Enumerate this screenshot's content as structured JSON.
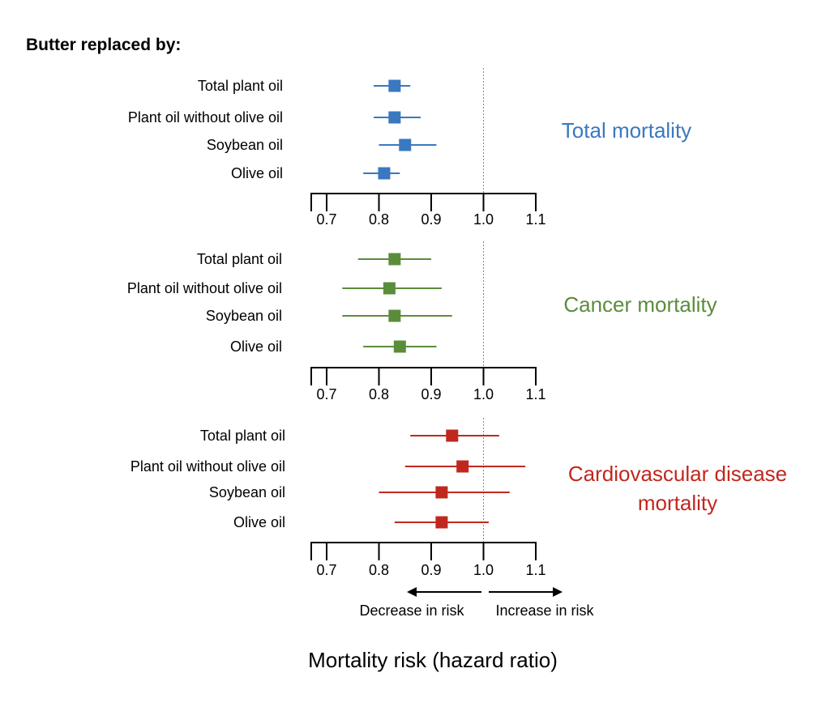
{
  "title": "Butter replaced by:",
  "xlabel": "Mortality risk (hazard ratio)",
  "direction_labels": {
    "decrease": "Decrease in risk",
    "increase": "Increase in risk"
  },
  "colors": {
    "total": "#3a78c0",
    "cancer": "#5b8c3c",
    "cvd": "#c0281f",
    "axis": "#000000",
    "refline": "#888888"
  },
  "chart_data": [
    {
      "type": "forest",
      "title": "Total mortality",
      "color": "#3a78c0",
      "x_ticks": [
        0.7,
        0.8,
        0.9,
        1.0,
        1.1
      ],
      "x_tick_labels": [
        "0.7",
        "0.8",
        "0.9",
        "1.0",
        "1.1"
      ],
      "xlim": [
        0.67,
        1.1
      ],
      "reference_line": 1.0,
      "rows": [
        {
          "label": "Total plant oil",
          "hr": 0.83,
          "lo": 0.79,
          "hi": 0.86
        },
        {
          "label": "Plant oil without olive oil",
          "hr": 0.83,
          "lo": 0.79,
          "hi": 0.88
        },
        {
          "label": "Soybean oil",
          "hr": 0.85,
          "lo": 0.8,
          "hi": 0.91
        },
        {
          "label": "Olive oil",
          "hr": 0.81,
          "lo": 0.77,
          "hi": 0.84
        }
      ]
    },
    {
      "type": "forest",
      "title": "Cancer mortality",
      "color": "#5b8c3c",
      "x_ticks": [
        0.7,
        0.8,
        0.9,
        1.0,
        1.1
      ],
      "x_tick_labels": [
        "0.7",
        "0.8",
        "0.9",
        "1.0",
        "1.1"
      ],
      "xlim": [
        0.67,
        1.1
      ],
      "reference_line": 1.0,
      "rows": [
        {
          "label": "Total plant oil",
          "hr": 0.83,
          "lo": 0.76,
          "hi": 0.9
        },
        {
          "label": "Plant oil without olive oil",
          "hr": 0.82,
          "lo": 0.73,
          "hi": 0.92
        },
        {
          "label": "Soybean oil",
          "hr": 0.83,
          "lo": 0.73,
          "hi": 0.94
        },
        {
          "label": "Olive oil",
          "hr": 0.84,
          "lo": 0.77,
          "hi": 0.91
        }
      ]
    },
    {
      "type": "forest",
      "title": "Cardiovascular disease\nmortality",
      "color": "#c0281f",
      "x_ticks": [
        0.7,
        0.8,
        0.9,
        1.0,
        1.1
      ],
      "x_tick_labels": [
        "0.7",
        "0.8",
        "0.9",
        "1.0",
        "1.1"
      ],
      "xlim": [
        0.67,
        1.1
      ],
      "reference_line": 1.0,
      "rows": [
        {
          "label": "Total plant oil",
          "hr": 0.94,
          "lo": 0.86,
          "hi": 1.03
        },
        {
          "label": "Plant oil without olive oil",
          "hr": 0.96,
          "lo": 0.85,
          "hi": 1.08
        },
        {
          "label": "Soybean oil",
          "hr": 0.92,
          "lo": 0.8,
          "hi": 1.05
        },
        {
          "label": "Olive oil",
          "hr": 0.92,
          "lo": 0.83,
          "hi": 1.01
        }
      ]
    }
  ]
}
